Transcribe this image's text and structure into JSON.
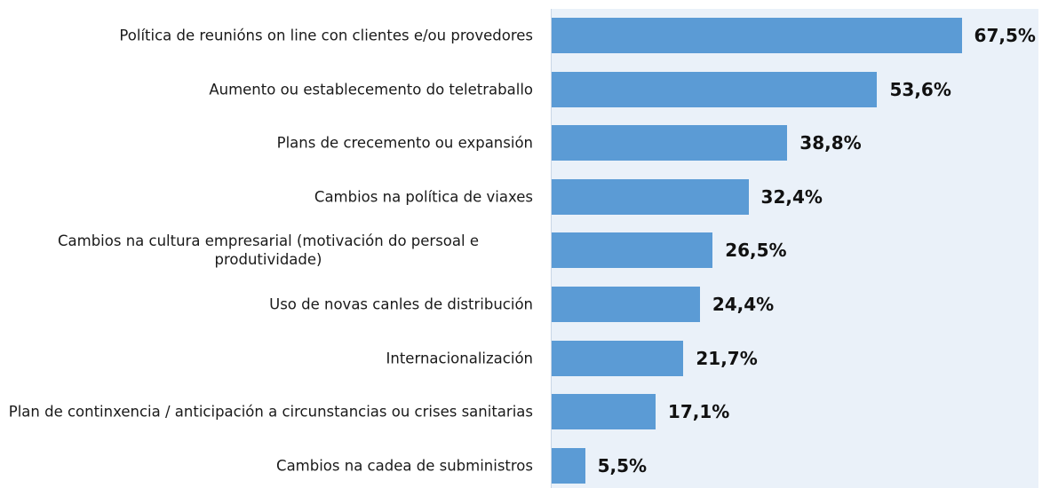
{
  "chart_data": {
    "type": "barh",
    "categories": [
      "Política de reunións on line con clientes e/ou provedores",
      "Aumento ou establecemento do teletraballo",
      "Plans de crecemento ou expansión",
      "Cambios na política de viaxes",
      "Cambios na cultura empresarial (motivación do persoal e produtividade)",
      "Uso de novas canles de distribución",
      "Internacionalización",
      "Plan de continxencia / anticipación a circunstancias ou crises sanitarias",
      "Cambios na cadea de subministros"
    ],
    "values": [
      67.5,
      53.6,
      38.8,
      32.4,
      26.5,
      24.4,
      21.7,
      17.1,
      5.5
    ],
    "value_labels": [
      "67,5%",
      "53,6%",
      "38,8%",
      "32,4%",
      "26,5%",
      "24,4%",
      "21,7%",
      "17,1%",
      "5,5%"
    ],
    "color": "#5b9bd5",
    "xlim": [
      0,
      80
    ]
  }
}
